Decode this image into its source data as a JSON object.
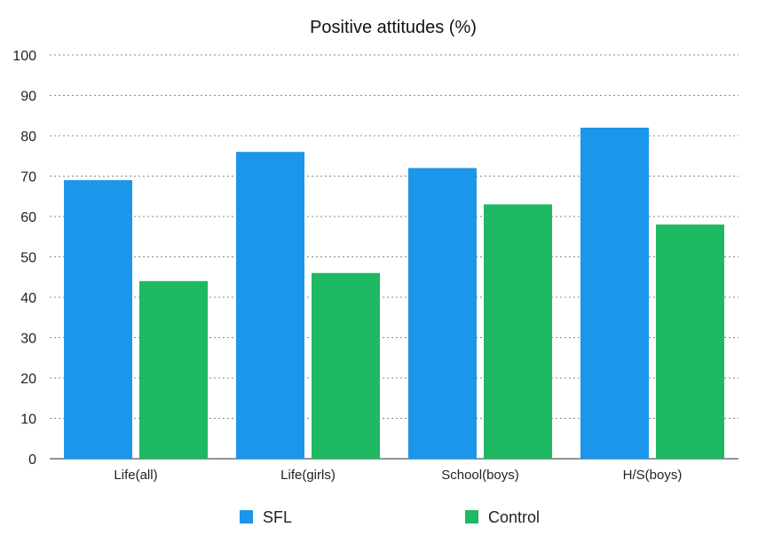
{
  "chart_data": {
    "type": "bar",
    "title": "Positive attitudes (%)",
    "xlabel": "",
    "ylabel": "",
    "ylim": [
      0,
      100
    ],
    "yticks": [
      0,
      10,
      20,
      30,
      40,
      50,
      60,
      70,
      80,
      90,
      100
    ],
    "grid": true,
    "legend_position": "bottom",
    "categories": [
      "Life(all)",
      "Life(girls)",
      "School(boys)",
      "H/S(boys)"
    ],
    "series": [
      {
        "name": "SFL",
        "color": "#1b96ea",
        "values": [
          69,
          76,
          72,
          82
        ]
      },
      {
        "name": "Control",
        "color": "#1eb962",
        "values": [
          44,
          46,
          63,
          58
        ]
      }
    ]
  }
}
